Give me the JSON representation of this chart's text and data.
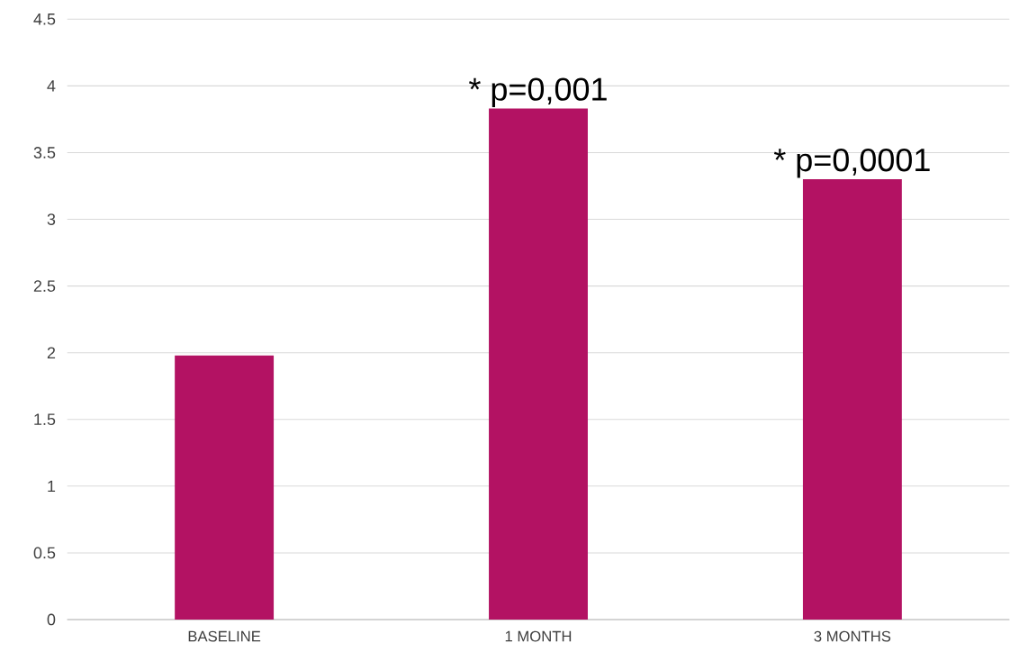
{
  "chart_data": {
    "type": "bar",
    "categories": [
      "BASELINE",
      "1 MONTH",
      "3 MONTHS"
    ],
    "values": [
      1.98,
      3.83,
      3.3
    ],
    "color": "#b31263",
    "ylim": [
      0,
      4.5
    ],
    "yticks": [
      0,
      {
        "value": 0.5,
        "label": "0.5"
      },
      1,
      {
        "value": 1.5,
        "label": "1.5"
      },
      2,
      {
        "value": 2.5,
        "label": "2.5"
      },
      3,
      {
        "value": 3.5,
        "label": "3.5"
      },
      4,
      {
        "value": 4.5,
        "label": "4.5"
      }
    ],
    "grid": "y",
    "annotations": [
      {
        "text": "* p=0,001",
        "x": "1 MONTH",
        "y": 3.83
      },
      {
        "text": "* p=0,0001",
        "x": "3 MONTHS",
        "y": 3.3
      }
    ]
  }
}
